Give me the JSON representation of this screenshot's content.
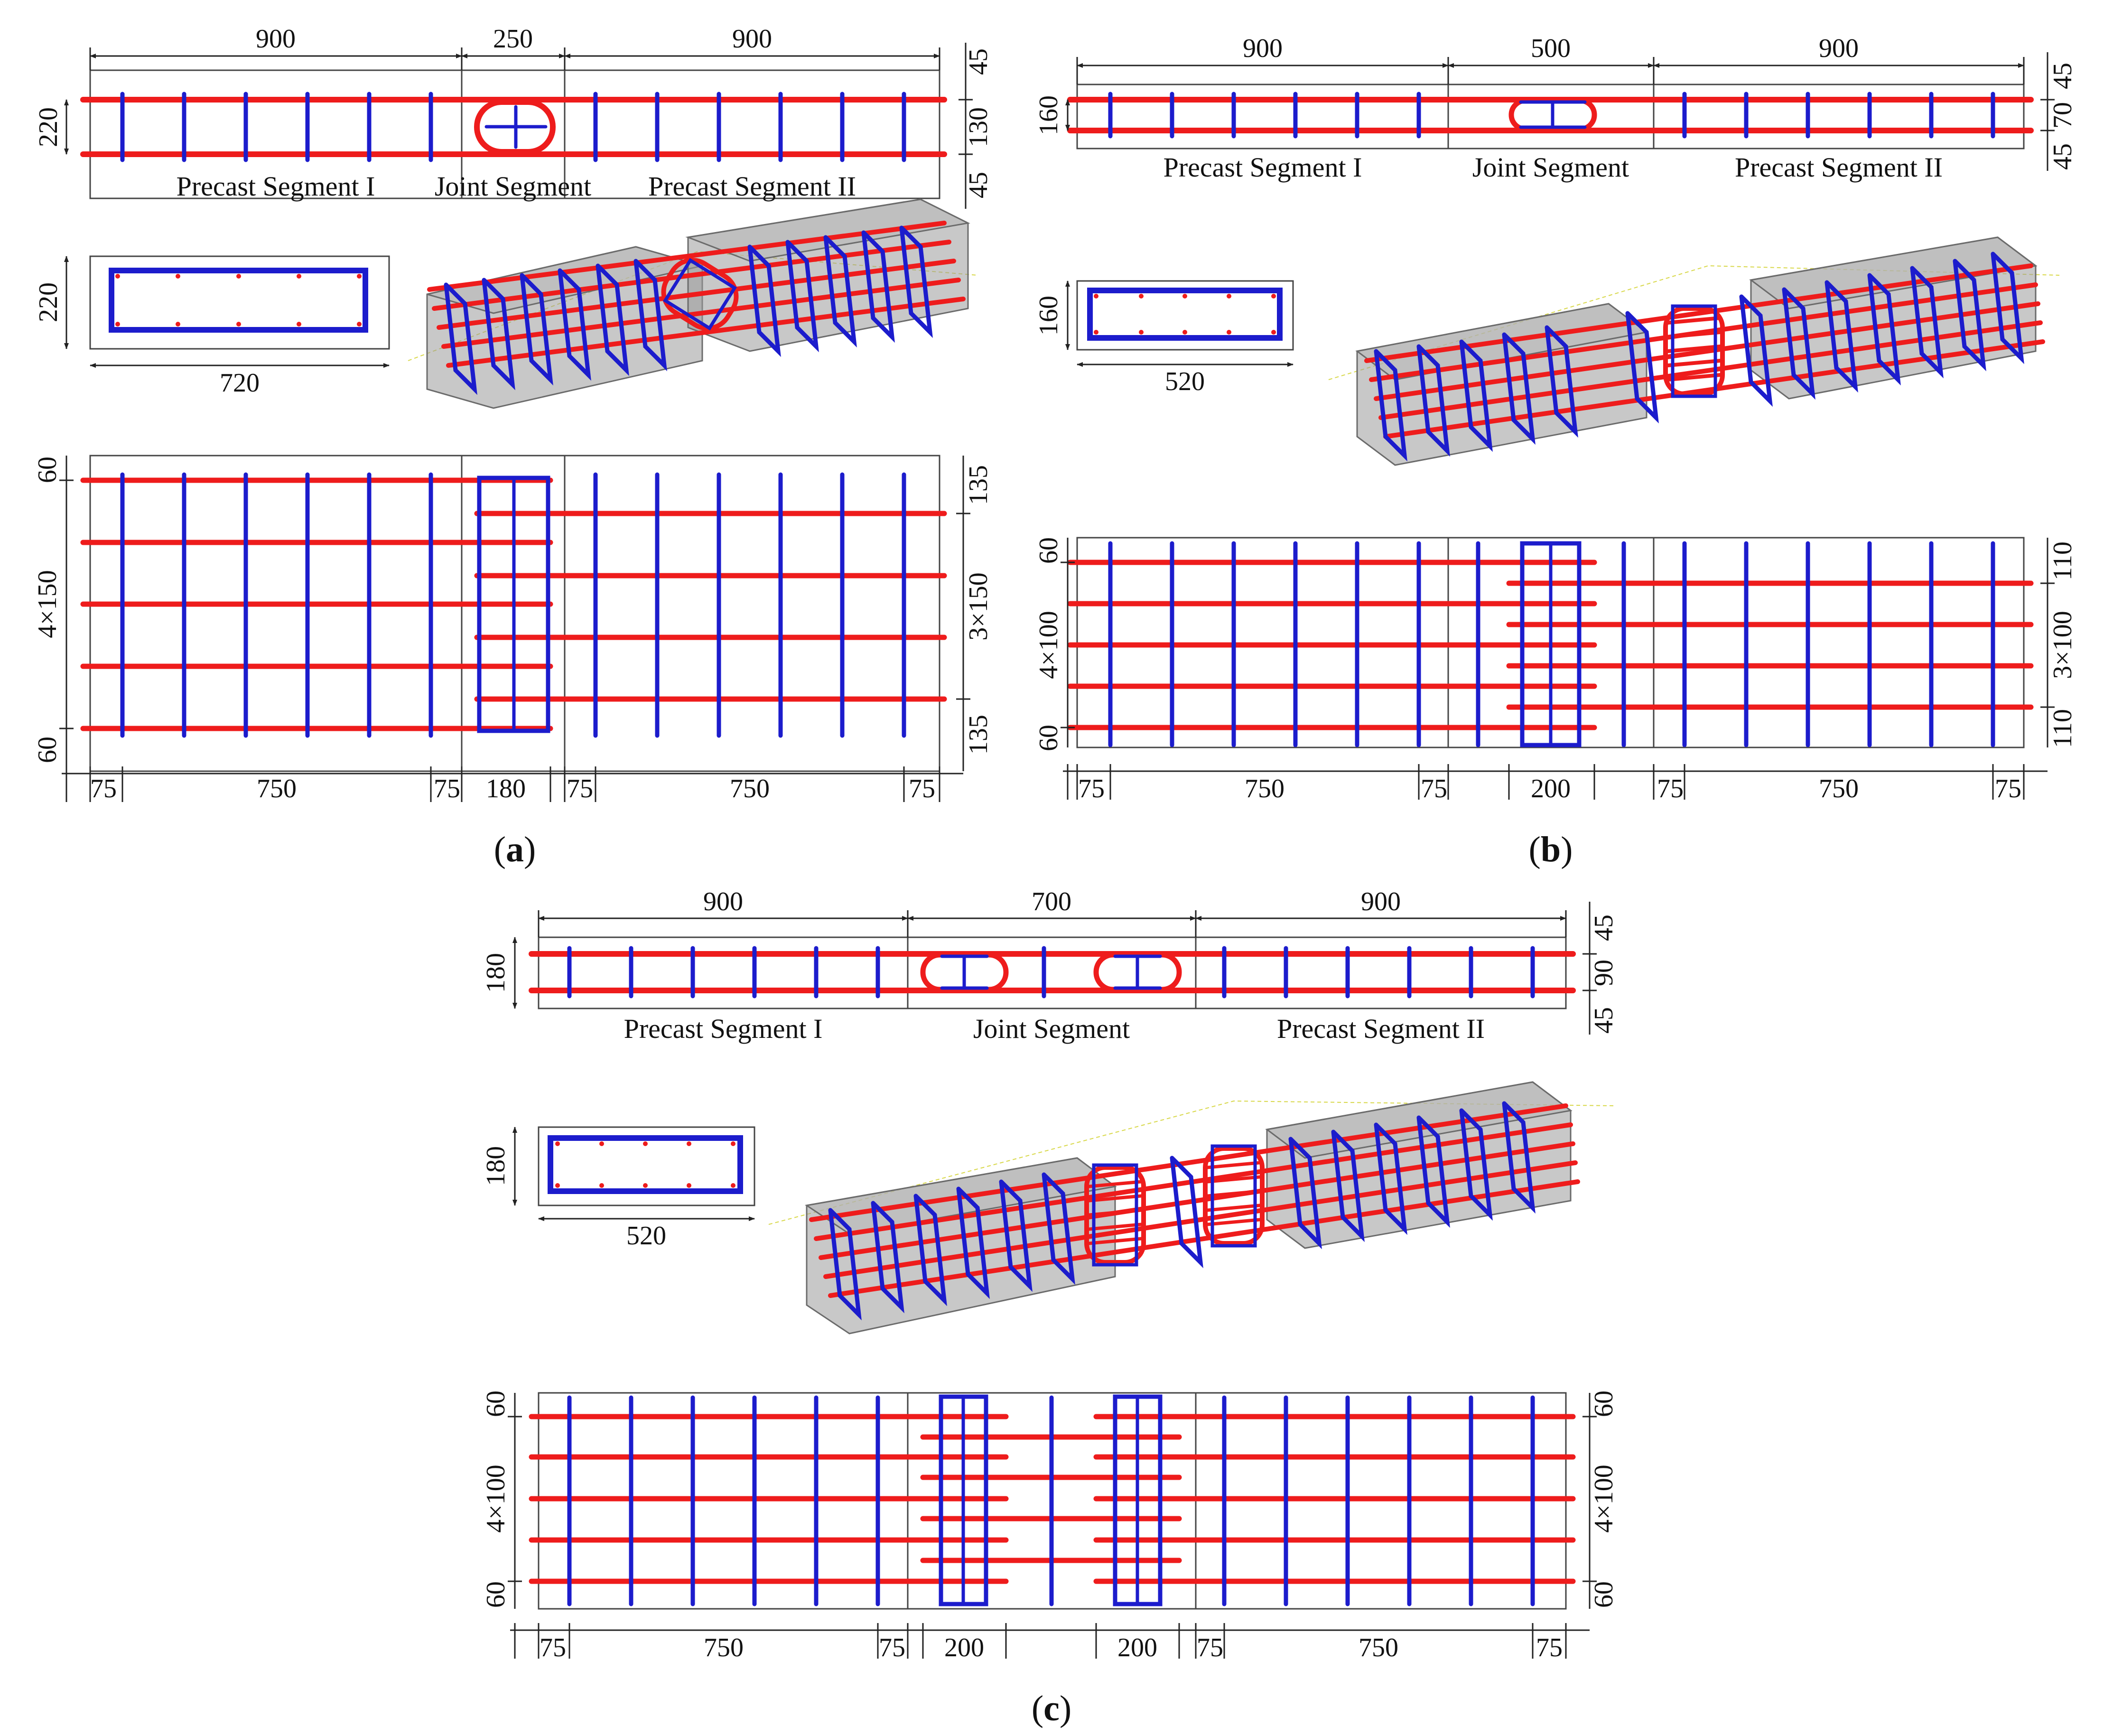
{
  "panels": {
    "a": {
      "caption": "a",
      "elevation": {
        "top_dims": [
          "900",
          "250",
          "900"
        ],
        "height_dim": "220",
        "right_dims": [
          "45",
          "130",
          "45"
        ],
        "segments": [
          "Precast Segment I",
          "Joint Segment",
          "Precast Segment II"
        ]
      },
      "section": {
        "width_dim": "720",
        "height_dim": "220"
      },
      "plan": {
        "left_dims": [
          "60",
          "4×150",
          "60"
        ],
        "right_dims": [
          "135",
          "3×150",
          "135"
        ],
        "bottom_dims": [
          "75",
          "750",
          "75",
          "180",
          "75",
          "750",
          "75"
        ]
      }
    },
    "b": {
      "caption": "b",
      "elevation": {
        "top_dims": [
          "900",
          "500",
          "900"
        ],
        "height_dim": "160",
        "right_dims": [
          "45",
          "70",
          "45"
        ],
        "segments": [
          "Precast Segment I",
          "Joint Segment",
          "Precast Segment II"
        ]
      },
      "section": {
        "width_dim": "520",
        "height_dim": "160"
      },
      "plan": {
        "left_dims": [
          "60",
          "4×100",
          "60"
        ],
        "right_dims": [
          "110",
          "3×100",
          "110"
        ],
        "bottom_dims": [
          "75",
          "750",
          "75",
          "200",
          "75",
          "750",
          "75"
        ]
      }
    },
    "c": {
      "caption": "c",
      "elevation": {
        "top_dims": [
          "900",
          "700",
          "900"
        ],
        "height_dim": "180",
        "right_dims": [
          "45",
          "90",
          "45"
        ],
        "segments": [
          "Precast Segment I",
          "Joint Segment",
          "Precast Segment II"
        ]
      },
      "section": {
        "width_dim": "520",
        "height_dim": "180"
      },
      "plan": {
        "left_dims": [
          "60",
          "4×100",
          "60"
        ],
        "right_dims": [
          "60",
          "4×100",
          "60"
        ],
        "bottom_dims": [
          "75",
          "750",
          "75",
          "200",
          "200",
          "75",
          "750",
          "75"
        ]
      }
    }
  },
  "colors": {
    "longitudinal_rebar": "#ee1c1c",
    "stirrup": "#1c1ccc",
    "concrete": "#9a9a9a",
    "outline": "#444444"
  }
}
